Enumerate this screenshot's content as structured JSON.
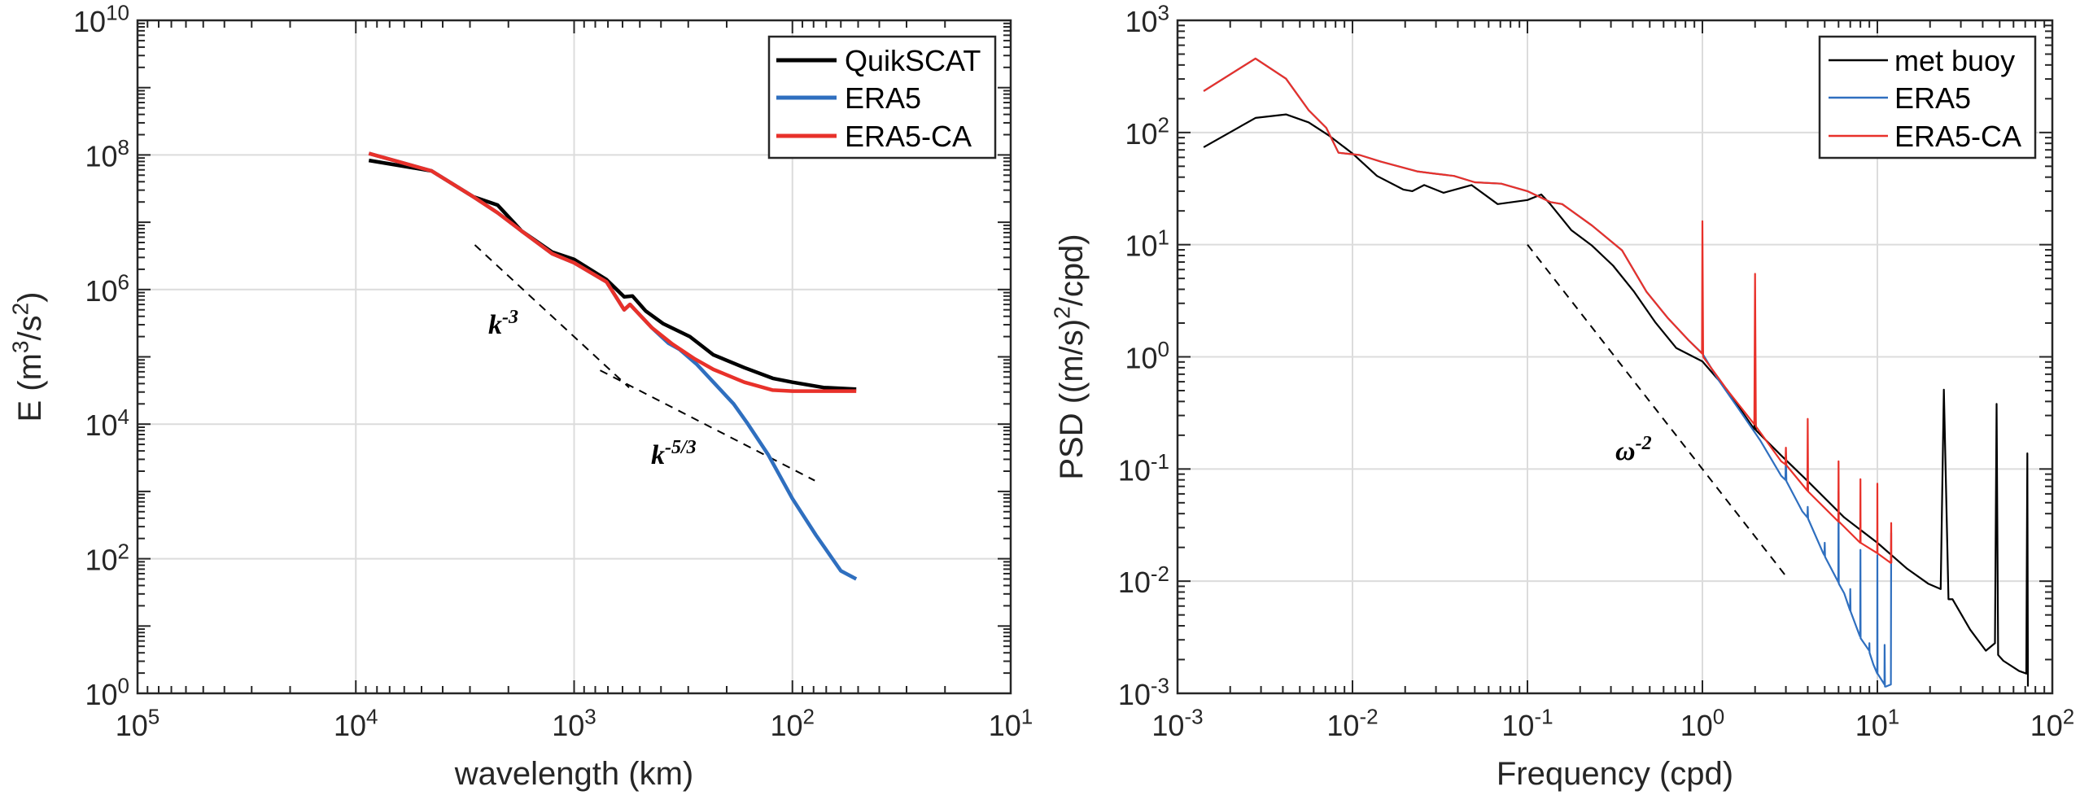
{
  "chart_data": [
    {
      "type": "line",
      "xscale": "log",
      "yscale": "log",
      "xlim": [
        100000,
        10
      ],
      "ylim": [
        1,
        10000000000
      ],
      "x_reversed": true,
      "grid": true,
      "xlabel": "wavelength (km)",
      "ylabel": "E (m^{3}/s^{2})",
      "x_ticks": [
        100000,
        10000,
        1000,
        100,
        10
      ],
      "x_tick_labels": [
        "10^{5}",
        "10^{4}",
        "10^{3}",
        "10^{2}",
        "10^{1}"
      ],
      "y_ticks": [
        1,
        100,
        10000,
        1000000,
        100000000,
        10000000000
      ],
      "y_tick_labels": [
        "10^{0}",
        "10^{2}",
        "10^{4}",
        "10^{6}",
        "10^{8}",
        "10^{10}"
      ],
      "legend_position": "top-right",
      "series": [
        {
          "name": "QuikSCAT",
          "color": "#000000",
          "points": [
            [
              8710,
              83000000.0
            ],
            [
              4500,
              58000000.0
            ],
            [
              2900,
              24000000.0
            ],
            [
              2240,
              18000000.0
            ],
            [
              1740,
              7400000.0
            ],
            [
              1260,
              3600000.0
            ],
            [
              1000,
              2800000.0
            ],
            [
              710,
              1400000.0
            ],
            [
              590,
              780000.0
            ],
            [
              540,
              800000.0
            ],
            [
              470,
              480000.0
            ],
            [
              390,
              310000.0
            ],
            [
              295,
              200000.0
            ],
            [
              230,
              107000.0
            ],
            [
              166,
              69000.0
            ],
            [
              123,
              48000.0
            ],
            [
              100,
              42000.0
            ],
            [
              72,
              35000.0
            ],
            [
              51,
              33000.0
            ]
          ]
        },
        {
          "name": "ERA5",
          "color": "#2f6fbf",
          "points": [
            [
              8710,
              105000000.0
            ],
            [
              4500,
              58000000.0
            ],
            [
              2900,
              24000000.0
            ],
            [
              2240,
              13800000.0
            ],
            [
              1740,
              7400000.0
            ],
            [
              1260,
              3400000.0
            ],
            [
              1000,
              2500000.0
            ],
            [
              710,
              1300000.0
            ],
            [
              590,
              500000.0
            ],
            [
              555,
              600000.0
            ],
            [
              440,
              270000.0
            ],
            [
              370,
              160000.0
            ],
            [
              330,
              130000.0
            ],
            [
              275,
              78000.0
            ],
            [
              230,
              42000.0
            ],
            [
              186,
              20000.0
            ],
            [
              162,
              10700.0
            ],
            [
              129,
              3500.0
            ],
            [
              100,
              780
            ],
            [
              78,
              224
            ],
            [
              60,
              66
            ],
            [
              51,
              50
            ]
          ]
        },
        {
          "name": "ERA5-CA",
          "color": "#e8312a",
          "points": [
            [
              8710,
              105000000.0
            ],
            [
              4500,
              58000000.0
            ],
            [
              2900,
              24000000.0
            ],
            [
              2240,
              13800000.0
            ],
            [
              1740,
              7400000.0
            ],
            [
              1260,
              3400000.0
            ],
            [
              1000,
              2500000.0
            ],
            [
              710,
              1300000.0
            ],
            [
              590,
              500000.0
            ],
            [
              555,
              600000.0
            ],
            [
              440,
              270000.0
            ],
            [
              355,
              155000.0
            ],
            [
              280,
              93000.0
            ],
            [
              230,
              65000.0
            ],
            [
              166,
              42000.0
            ],
            [
              123,
              32000.0
            ],
            [
              100,
              31000.0
            ],
            [
              51,
              31000.0
            ]
          ]
        }
      ],
      "reference_lines": [
        {
          "label": "k^{-3}",
          "points": [
            [
              2850,
              4600000.0
            ],
            [
              560,
              35000.0
            ]
          ]
        },
        {
          "label": "k^{-5/3}",
          "points": [
            [
              760,
              63000.0
            ],
            [
              79,
              1450.0
            ]
          ]
        }
      ]
    },
    {
      "type": "line",
      "xscale": "log",
      "yscale": "log",
      "xlim": [
        0.001,
        100
      ],
      "ylim": [
        0.001,
        1000
      ],
      "grid": true,
      "xlabel": "Frequency (cpd)",
      "ylabel": "PSD ((m/s)^{2}/cpd)",
      "x_ticks": [
        0.001,
        0.01,
        0.1,
        1,
        10,
        100
      ],
      "x_tick_labels": [
        "10^{-3}",
        "10^{-2}",
        "10^{-1}",
        "10^{0}",
        "10^{1}",
        "10^{2}"
      ],
      "y_ticks": [
        0.001,
        0.01,
        0.1,
        1,
        10,
        100,
        1000
      ],
      "y_tick_labels": [
        "10^{-3}",
        "10^{-2}",
        "10^{-1}",
        "10^{0}",
        "10^{1}",
        "10^{2}",
        "10^{3}"
      ],
      "legend_position": "top-right",
      "series": [
        {
          "name": "met buoy",
          "color": "#000000",
          "points": [
            [
              0.00141,
              74
            ],
            [
              0.00279,
              135
            ],
            [
              0.00417,
              145
            ],
            [
              0.00562,
              123
            ],
            [
              0.00741,
              93
            ],
            [
              0.01,
              65
            ],
            [
              0.0138,
              41
            ],
            [
              0.0195,
              31
            ],
            [
              0.022,
              30
            ],
            [
              0.0257,
              34
            ],
            [
              0.0331,
              29
            ],
            [
              0.0479,
              34
            ],
            [
              0.0676,
              23
            ],
            [
              0.1,
              25
            ],
            [
              0.12,
              28
            ],
            [
              0.135,
              23
            ],
            [
              0.158,
              17
            ],
            [
              0.178,
              13.5
            ],
            [
              0.234,
              9.8
            ],
            [
              0.309,
              6.5
            ],
            [
              0.407,
              3.8
            ],
            [
              0.537,
              2.04
            ],
            [
              0.708,
              1.2
            ],
            [
              1.0,
              0.91
            ],
            [
              1.38,
              0.51
            ],
            [
              1.98,
              0.226
            ],
            [
              2.0,
              0.47
            ],
            [
              2.02,
              0.222
            ],
            [
              2.82,
              0.132
            ],
            [
              4.0,
              0.078
            ],
            [
              6.46,
              0.037
            ],
            [
              10,
              0.022
            ],
            [
              14.8,
              0.0129
            ],
            [
              19.5,
              0.0095
            ],
            [
              23,
              0.0085
            ],
            [
              24,
              0.51
            ],
            [
              25.5,
              0.0069
            ],
            [
              26.9,
              0.0069
            ],
            [
              33.9,
              0.0037
            ],
            [
              41.7,
              0.0024
            ],
            [
              47,
              0.0028
            ],
            [
              48,
              0.38
            ],
            [
              49,
              0.0022
            ],
            [
              52.5,
              0.00195
            ],
            [
              64.6,
              0.00158
            ],
            [
              71,
              0.0015
            ],
            [
              72,
              0.138
            ],
            [
              72.5,
              0.00115
            ]
          ]
        },
        {
          "name": "ERA5",
          "color": "#2f6fbf",
          "points": [
            [
              0.00141,
              234
            ],
            [
              0.00279,
              457
            ],
            [
              0.00417,
              302
            ],
            [
              0.00562,
              158
            ],
            [
              0.00708,
              110
            ],
            [
              0.00832,
              66
            ],
            [
              0.011,
              63
            ],
            [
              0.0145,
              55
            ],
            [
              0.0234,
              45
            ],
            [
              0.0295,
              43
            ],
            [
              0.038,
              41
            ],
            [
              0.05,
              36
            ],
            [
              0.0708,
              35
            ],
            [
              0.1,
              30
            ],
            [
              0.135,
              24
            ],
            [
              0.158,
              23
            ],
            [
              0.234,
              14.8
            ],
            [
              0.347,
              8.9
            ],
            [
              0.479,
              3.8
            ],
            [
              0.631,
              2.24
            ],
            [
              0.832,
              1.41
            ],
            [
              1.0,
              1.07
            ],
            [
              1.23,
              0.63
            ],
            [
              1.62,
              0.34
            ],
            [
              2.14,
              0.18
            ],
            [
              2.82,
              0.087
            ],
            [
              2.98,
              0.08
            ],
            [
              3.0,
              0.13
            ],
            [
              3.02,
              0.078
            ],
            [
              3.72,
              0.042
            ],
            [
              3.98,
              0.037
            ],
            [
              4.0,
              0.046
            ],
            [
              4.02,
              0.036
            ],
            [
              4.9,
              0.0178
            ],
            [
              4.98,
              0.017
            ],
            [
              5.0,
              0.022
            ],
            [
              5.02,
              0.0165
            ],
            [
              5.98,
              0.0098
            ],
            [
              6.0,
              0.063
            ],
            [
              6.02,
              0.0095
            ],
            [
              6.46,
              0.0078
            ],
            [
              6.98,
              0.0055
            ],
            [
              7.0,
              0.0085
            ],
            [
              7.02,
              0.0054
            ],
            [
              7.9,
              0.0033
            ],
            [
              7.98,
              0.0032
            ],
            [
              8.0,
              0.019
            ],
            [
              8.02,
              0.0031
            ],
            [
              8.98,
              0.0024
            ],
            [
              9.0,
              0.0028
            ],
            [
              9.02,
              0.0023
            ],
            [
              9.5,
              0.0018
            ],
            [
              9.98,
              0.0015
            ],
            [
              10,
              0.017
            ],
            [
              10.02,
              0.0015
            ],
            [
              10.98,
              0.0012
            ],
            [
              11,
              0.0027
            ],
            [
              11.05,
              0.00115
            ],
            [
              11.2,
              0.00115
            ],
            [
              11.95,
              0.0012
            ],
            [
              12,
              0.027
            ]
          ]
        },
        {
          "name": "ERA5-CA",
          "color": "#e8312a",
          "points": [
            [
              0.00141,
              234
            ],
            [
              0.00279,
              457
            ],
            [
              0.00417,
              302
            ],
            [
              0.00562,
              158
            ],
            [
              0.00708,
              110
            ],
            [
              0.00832,
              66
            ],
            [
              0.011,
              63
            ],
            [
              0.0145,
              55
            ],
            [
              0.0234,
              45
            ],
            [
              0.0295,
              43
            ],
            [
              0.038,
              41
            ],
            [
              0.05,
              36
            ],
            [
              0.0708,
              35
            ],
            [
              0.1,
              30
            ],
            [
              0.135,
              24
            ],
            [
              0.158,
              23
            ],
            [
              0.234,
              14.8
            ],
            [
              0.347,
              8.9
            ],
            [
              0.479,
              3.8
            ],
            [
              0.631,
              2.24
            ],
            [
              0.832,
              1.41
            ],
            [
              0.995,
              1.07
            ],
            [
              1.0,
              16.2
            ],
            [
              1.01,
              1.0
            ],
            [
              1.38,
              0.51
            ],
            [
              1.98,
              0.25
            ],
            [
              2.0,
              5.5
            ],
            [
              2.02,
              0.24
            ],
            [
              2.82,
              0.117
            ],
            [
              2.98,
              0.11
            ],
            [
              3.0,
              0.155
            ],
            [
              3.02,
              0.108
            ],
            [
              3.98,
              0.064
            ],
            [
              4.0,
              0.28
            ],
            [
              4.02,
              0.063
            ],
            [
              5.98,
              0.034
            ],
            [
              6.0,
              0.117
            ],
            [
              6.02,
              0.034
            ],
            [
              7.98,
              0.022
            ],
            [
              8.0,
              0.081
            ],
            [
              8.02,
              0.022
            ],
            [
              9.98,
              0.0178
            ],
            [
              10,
              0.074
            ],
            [
              10.02,
              0.0177
            ],
            [
              11.95,
              0.0145
            ],
            [
              12,
              0.033
            ],
            [
              12.02,
              0.0145
            ]
          ]
        }
      ],
      "reference_lines": [
        {
          "label": "ω^{-2}",
          "points": [
            [
              0.1,
              10
            ],
            [
              3.0,
              0.0111
            ]
          ]
        }
      ]
    }
  ]
}
